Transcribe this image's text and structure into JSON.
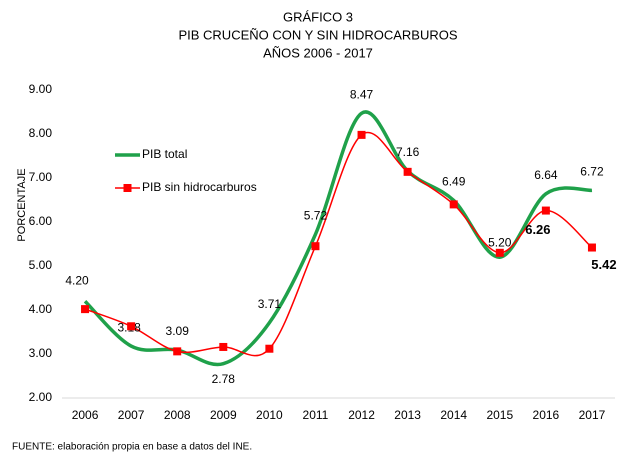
{
  "chart_data": {
    "type": "line",
    "title": [
      "GRÁFICO 3",
      "PIB CRUCEÑO CON Y SIN HIDROCARBUROS",
      "AÑOS 2006 - 2017"
    ],
    "ylabel": "PORCENTAJE",
    "note": "FUENTE: elaboración propia en base a datos del INE.",
    "categories": [
      "2006",
      "2007",
      "2008",
      "2009",
      "2010",
      "2011",
      "2012",
      "2013",
      "2014",
      "2015",
      "2016",
      "2017"
    ],
    "series": [
      {
        "name": "PIB total",
        "color": "#1fa14a",
        "marker": false,
        "values": [
          4.2,
          3.18,
          3.09,
          2.78,
          3.71,
          5.72,
          8.47,
          7.16,
          6.49,
          5.2,
          6.64,
          6.72
        ],
        "value_labels": [
          "4.20",
          "3.18",
          "3.09",
          "2.78",
          "3.71",
          "5.72",
          "8.47",
          "7.16",
          "6.49",
          "5.20",
          "6.64",
          "6.72"
        ]
      },
      {
        "name": "PIB sin hidrocarburos",
        "color": "#ff0000",
        "marker": true,
        "values": [
          4.02,
          3.63,
          3.06,
          3.16,
          3.12,
          5.45,
          7.98,
          7.14,
          6.4,
          5.3,
          6.26,
          5.42
        ],
        "value_labels": [
          null,
          null,
          null,
          null,
          null,
          null,
          null,
          null,
          null,
          null,
          "6.26",
          "5.42"
        ]
      }
    ],
    "ylim": [
      2,
      9
    ],
    "yticks": [
      {
        "value": 2,
        "label": "2.00"
      },
      {
        "value": 3,
        "label": "3.00"
      },
      {
        "value": 4,
        "label": "4.00"
      },
      {
        "value": 5,
        "label": "5.00"
      },
      {
        "value": 6,
        "label": "6.00"
      },
      {
        "value": 7,
        "label": "7.00"
      },
      {
        "value": 8,
        "label": "8.00"
      },
      {
        "value": 9,
        "label": "9.00"
      }
    ],
    "grid": false,
    "legend": "upper left"
  }
}
